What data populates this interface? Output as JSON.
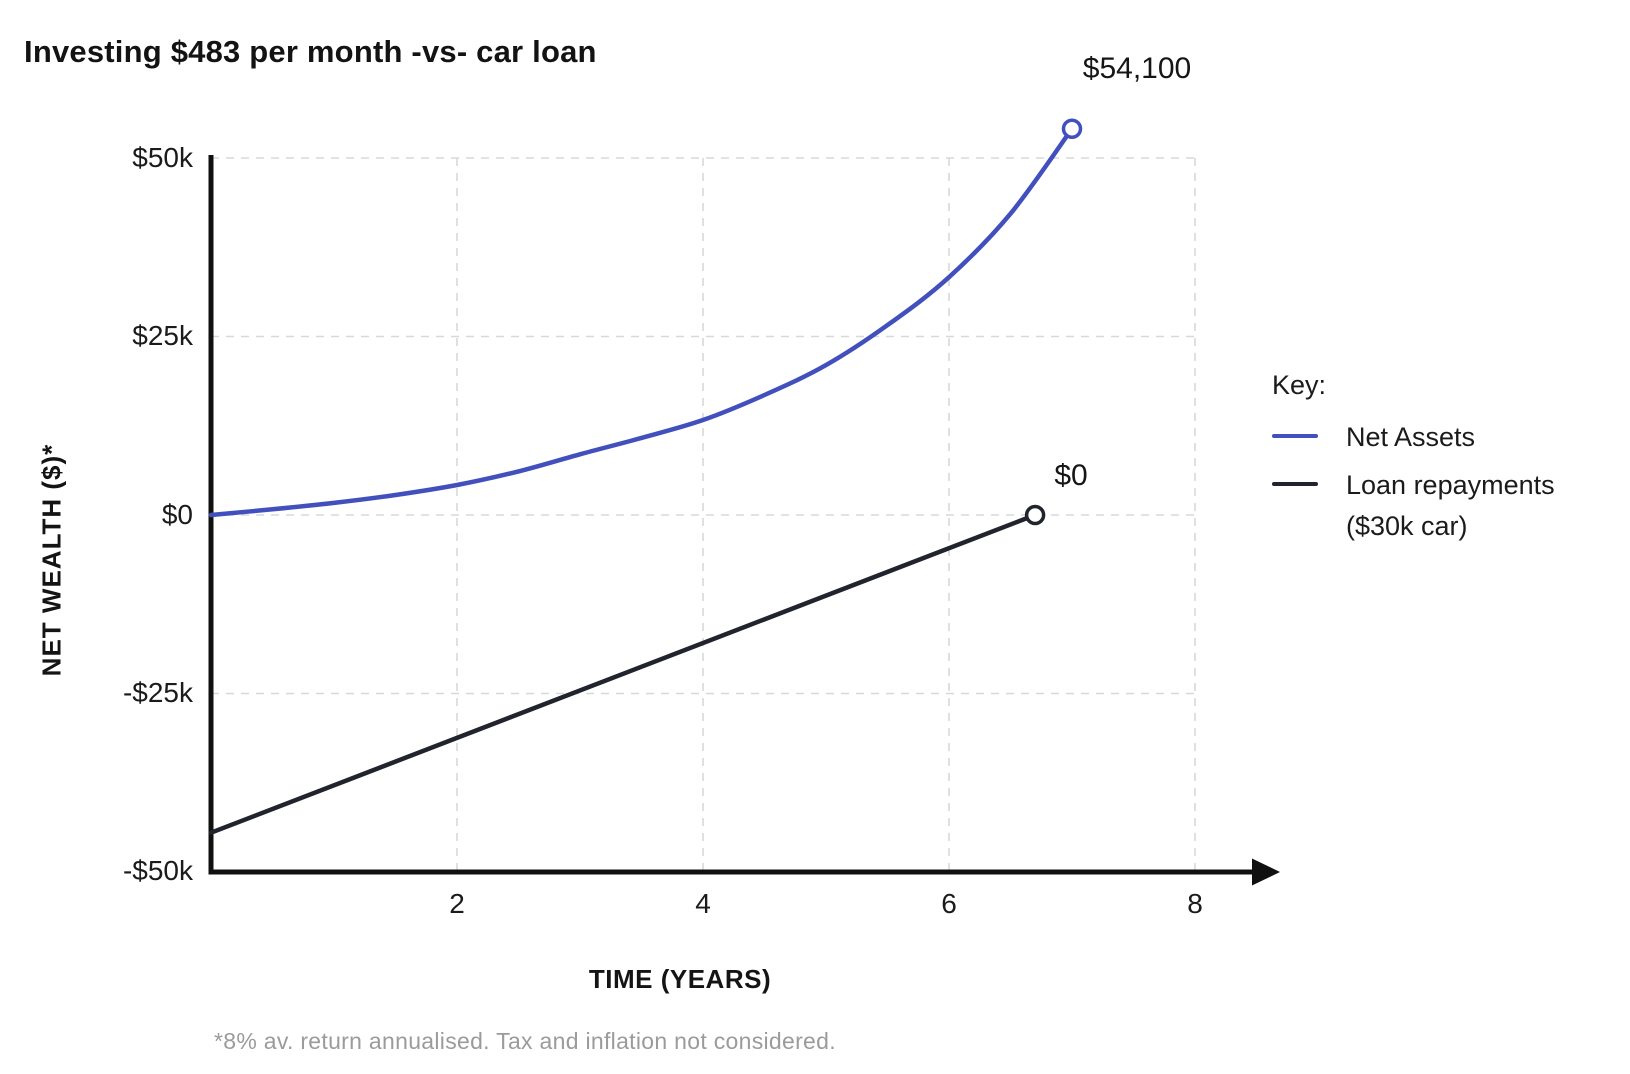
{
  "title": "Investing $483 per month -vs- car loan",
  "footnote": "*8% av. return annualised. Tax and inflation not considered.",
  "legend": {
    "title": "Key:",
    "items": [
      {
        "label": "Net Assets",
        "color": "#4150bd"
      },
      {
        "label": "Loan repayments",
        "label2": "($30k car)",
        "color": "#21242c"
      }
    ]
  },
  "chart_data": {
    "type": "line",
    "title": "Investing $483 per month -vs- car loan",
    "xlabel": "TIME (YEARS)",
    "ylabel": "NET WEALTH ($)*",
    "xlim": [
      0,
      8
    ],
    "ylim": [
      -50000,
      50000
    ],
    "grid": "dashed",
    "grid_color": "#d8d8d8",
    "axis_color": "#101010",
    "legend_position": "right",
    "x_ticks": [
      {
        "label": "2",
        "value": 2
      },
      {
        "label": "4",
        "value": 4
      },
      {
        "label": "6",
        "value": 6
      },
      {
        "label": "8",
        "value": 8
      }
    ],
    "y_ticks": [
      {
        "label": "$50k",
        "value": 50000
      },
      {
        "label": "$25k",
        "value": 25000
      },
      {
        "label": "$0",
        "value": 0
      },
      {
        "label": "-$25k",
        "value": -25000
      },
      {
        "label": "-$50k",
        "value": -50000
      }
    ],
    "series": [
      {
        "name": "Net Assets",
        "color": "#4150bd",
        "smooth": true,
        "end_marker": "open-circle",
        "end_label": "$54,100",
        "points": [
          [
            0,
            0
          ],
          [
            0.5,
            800
          ],
          [
            1,
            1700
          ],
          [
            1.5,
            2800
          ],
          [
            2,
            4200
          ],
          [
            2.5,
            6100
          ],
          [
            3,
            8500
          ],
          [
            3.5,
            10800
          ],
          [
            4,
            13300
          ],
          [
            4.5,
            16800
          ],
          [
            5,
            21000
          ],
          [
            5.5,
            26600
          ],
          [
            6,
            33300
          ],
          [
            6.5,
            42200
          ],
          [
            7,
            54100
          ]
        ]
      },
      {
        "name": "Loan repayments ($30k car)",
        "color": "#21242c",
        "smooth": false,
        "end_marker": "open-circle",
        "end_label": "$0",
        "points": [
          [
            0,
            -44500
          ],
          [
            6.7,
            0
          ]
        ]
      }
    ]
  }
}
